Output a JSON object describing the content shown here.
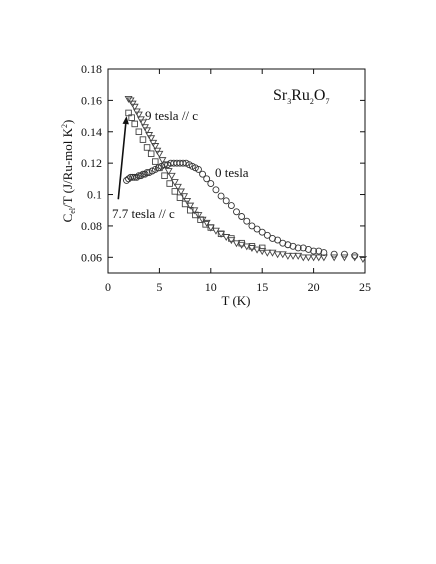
{
  "chart_data": {
    "type": "scatter",
    "xlabel": "T (K)",
    "ylabel": {
      "main": "C",
      "sub": "el",
      "rest": "/T (J/Ru-mol K",
      "sup": "2",
      "end": ")"
    },
    "xlim": [
      0,
      25
    ],
    "ylim": [
      0.05,
      0.18
    ],
    "xticks": [
      0,
      5,
      10,
      15,
      20,
      25
    ],
    "yticks": [
      0.06,
      0.08,
      0.1,
      0.12,
      0.14,
      0.16,
      0.18
    ],
    "ytick_labels": [
      "0.06",
      "0.08",
      "0.1",
      "0.12",
      "0.14",
      "0.16",
      "0.18"
    ],
    "grid": false,
    "formula": {
      "parts": [
        [
          "Sr",
          "3"
        ],
        [
          "Ru",
          "2"
        ],
        [
          "O",
          "7"
        ]
      ]
    },
    "annotations": [
      {
        "text": "9 tesla // c",
        "x": 1.8,
        "y": 0.155
      },
      {
        "text": "0 tesla",
        "x": 10.5,
        "y": 0.113
      },
      {
        "text": "7.7 tesla // c",
        "x": 0.5,
        "y": 0.093
      }
    ],
    "arrow": {
      "from": [
        1.0,
        0.097
      ],
      "to": [
        1.8,
        0.15
      ]
    },
    "series": [
      {
        "name": "0 tesla",
        "marker": "circle",
        "x": [
          1.8,
          2.0,
          2.2,
          2.4,
          2.6,
          2.8,
          3.0,
          3.2,
          3.4,
          3.6,
          3.8,
          4.0,
          4.3,
          4.6,
          4.9,
          5.2,
          5.5,
          5.8,
          6.1,
          6.4,
          6.7,
          7.0,
          7.3,
          7.6,
          7.9,
          8.2,
          8.5,
          8.8,
          9.2,
          9.6,
          10.0,
          10.5,
          11.0,
          11.5,
          12.0,
          12.5,
          13.0,
          13.5,
          14.0,
          14.5,
          15.0,
          15.5,
          16.0,
          16.5,
          17.0,
          17.5,
          18.0,
          18.5,
          19.0,
          19.5,
          20.0,
          20.5,
          21.0,
          22.0,
          23.0,
          24.0
        ],
        "y": [
          0.109,
          0.11,
          0.111,
          0.111,
          0.111,
          0.111,
          0.112,
          0.112,
          0.113,
          0.113,
          0.114,
          0.114,
          0.115,
          0.116,
          0.117,
          0.118,
          0.119,
          0.119,
          0.12,
          0.12,
          0.12,
          0.12,
          0.12,
          0.12,
          0.119,
          0.118,
          0.117,
          0.116,
          0.113,
          0.11,
          0.107,
          0.103,
          0.099,
          0.096,
          0.093,
          0.089,
          0.086,
          0.083,
          0.08,
          0.078,
          0.076,
          0.074,
          0.072,
          0.071,
          0.069,
          0.068,
          0.067,
          0.066,
          0.066,
          0.065,
          0.064,
          0.064,
          0.063,
          0.062,
          0.062,
          0.061
        ]
      },
      {
        "name": "7.7 tesla // c",
        "marker": "square",
        "x": [
          2.0,
          2.3,
          2.6,
          3.0,
          3.4,
          3.8,
          4.2,
          4.6,
          5.0,
          5.5,
          6.0,
          6.5,
          7.0,
          7.5,
          8.0,
          8.5,
          9.0,
          9.5,
          10.0,
          11.0,
          12.0,
          13.0,
          14.0,
          15.0
        ],
        "y": [
          0.152,
          0.149,
          0.145,
          0.14,
          0.135,
          0.13,
          0.126,
          0.121,
          0.117,
          0.112,
          0.107,
          0.102,
          0.098,
          0.094,
          0.09,
          0.087,
          0.084,
          0.081,
          0.079,
          0.075,
          0.072,
          0.069,
          0.067,
          0.066
        ]
      },
      {
        "name": "9 tesla // c",
        "marker": "triangle-down",
        "x": [
          2.0,
          2.2,
          2.4,
          2.6,
          2.8,
          3.0,
          3.2,
          3.4,
          3.6,
          3.8,
          4.0,
          4.2,
          4.4,
          4.6,
          4.8,
          5.0,
          5.3,
          5.6,
          5.9,
          6.2,
          6.5,
          6.8,
          7.1,
          7.4,
          7.7,
          8.0,
          8.4,
          8.8,
          9.2,
          9.6,
          10.0,
          10.5,
          11.0,
          11.5,
          12.0,
          12.5,
          13.0,
          13.5,
          14.0,
          14.5,
          15.0,
          15.5,
          16.0,
          16.5,
          17.0,
          17.5,
          18.0,
          18.5,
          19.0,
          19.5,
          20.0,
          20.5,
          21.0,
          22.0,
          23.0,
          24.0,
          24.8
        ],
        "y": [
          0.161,
          0.16,
          0.158,
          0.156,
          0.153,
          0.151,
          0.148,
          0.146,
          0.143,
          0.141,
          0.138,
          0.136,
          0.133,
          0.131,
          0.128,
          0.126,
          0.122,
          0.119,
          0.115,
          0.112,
          0.108,
          0.105,
          0.102,
          0.099,
          0.096,
          0.093,
          0.09,
          0.087,
          0.084,
          0.082,
          0.079,
          0.077,
          0.075,
          0.073,
          0.071,
          0.069,
          0.068,
          0.067,
          0.066,
          0.065,
          0.064,
          0.063,
          0.063,
          0.062,
          0.062,
          0.061,
          0.061,
          0.061,
          0.06,
          0.06,
          0.06,
          0.06,
          0.06,
          0.06,
          0.06,
          0.06,
          0.059
        ]
      }
    ]
  }
}
